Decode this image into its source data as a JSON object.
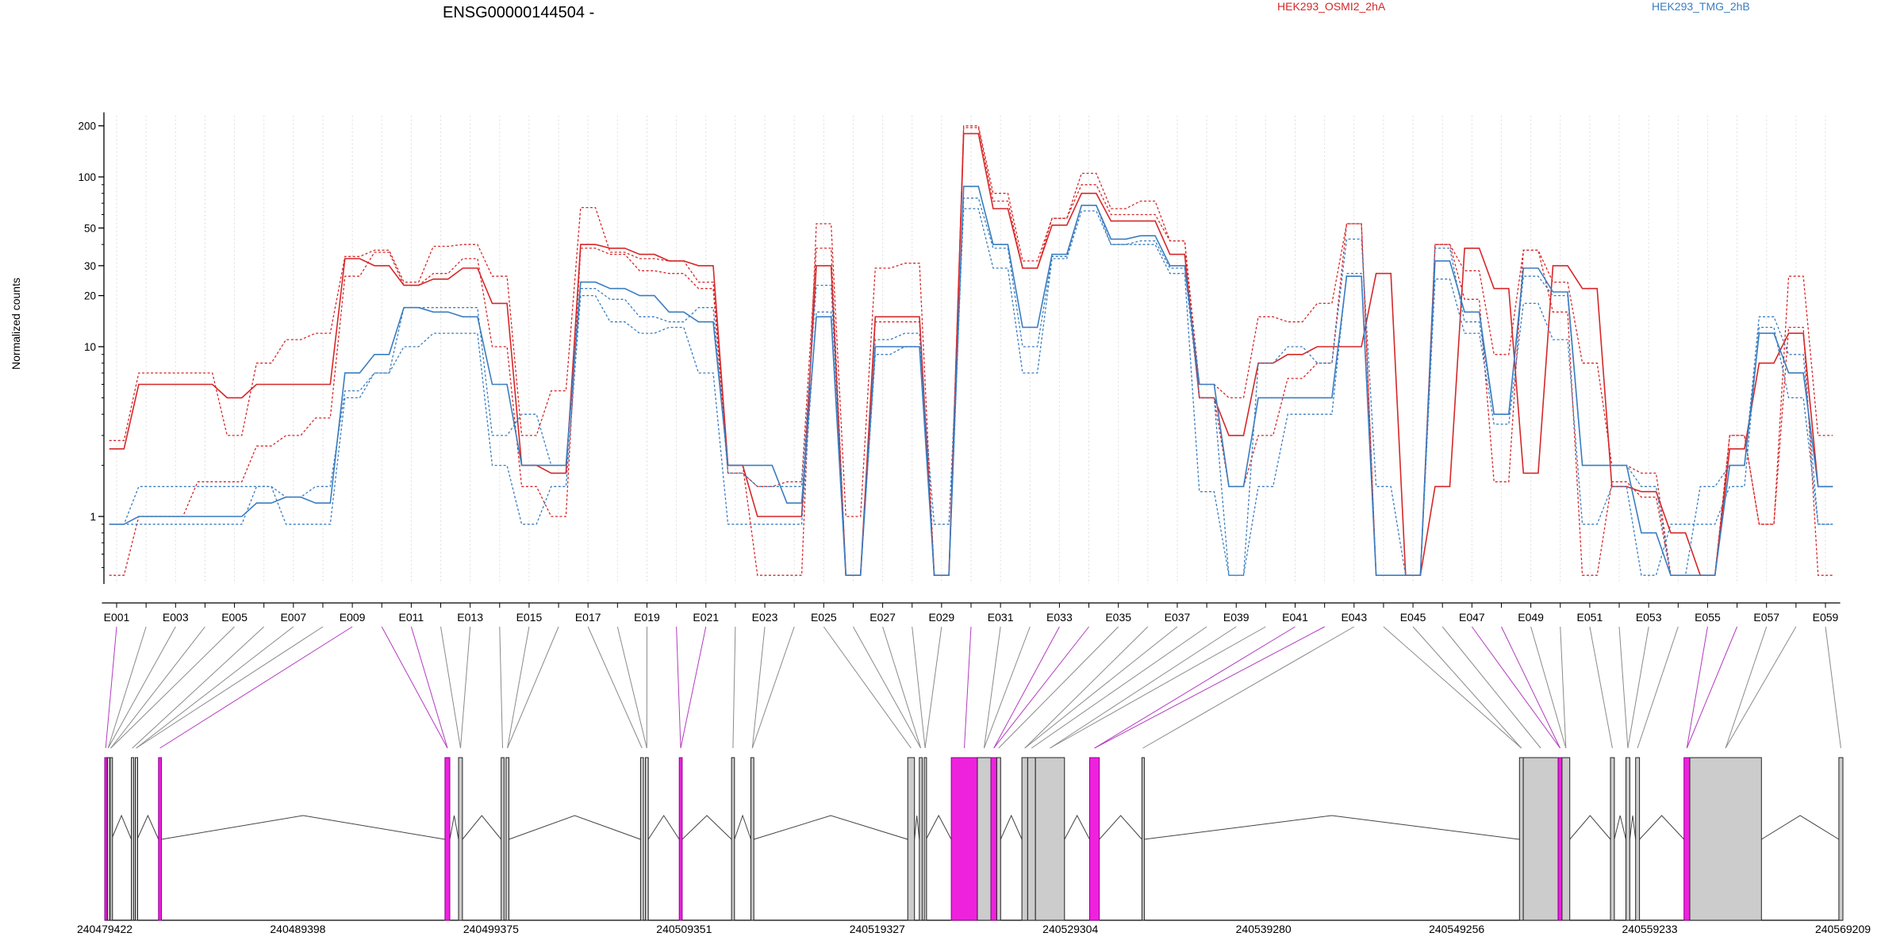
{
  "chart_data": {
    "type": "line",
    "title": "ENSG00000144504 -",
    "ylabel": "Normalized counts",
    "yscale": "log",
    "ylim": [
      0.4,
      230
    ],
    "yticks": [
      1,
      10,
      20,
      30,
      50,
      100,
      200
    ],
    "legend_position": "top",
    "grid": "vertical dotted lines at each exon",
    "colors": {
      "condition_a": "#d62728",
      "condition_b": "#3a7dc0",
      "highlight_exon": "#ee22dd",
      "nonhighlight_exon": "#cccccc"
    },
    "exons": [
      "E001",
      "E002",
      "E003",
      "E004",
      "E005",
      "E006",
      "E007",
      "E008",
      "E009",
      "E010",
      "E011",
      "E012",
      "E013",
      "E014",
      "E015",
      "E016",
      "E017",
      "E018",
      "E019",
      "E020",
      "E021",
      "E022",
      "E023",
      "E024",
      "E025",
      "E026",
      "E027",
      "E028",
      "E029",
      "E030",
      "E031",
      "E032",
      "E033",
      "E034",
      "E035",
      "E036",
      "E037",
      "E038",
      "E039",
      "E040",
      "E041",
      "E042",
      "E043",
      "E044",
      "E045",
      "E046",
      "E047",
      "E048",
      "E049",
      "E050",
      "E051",
      "E052",
      "E053",
      "E054",
      "E055",
      "E056",
      "E057",
      "E058",
      "E059"
    ],
    "exon_tick_labels": [
      "E001",
      "E003",
      "E005",
      "E007",
      "E009",
      "E011",
      "E013",
      "E015",
      "E017",
      "E019",
      "E021",
      "E023",
      "E025",
      "E027",
      "E029",
      "E031",
      "E033",
      "E035",
      "E037",
      "E039",
      "E041",
      "E043",
      "E045",
      "E047",
      "E049",
      "E051",
      "E053",
      "E055",
      "E057",
      "E059"
    ],
    "series": [
      {
        "name": "HEK293_OSMI2_2hA",
        "group": "condition_a",
        "dashed": false,
        "values": [
          2.5,
          6,
          6,
          6,
          5,
          6,
          6,
          6,
          33,
          30,
          23,
          25,
          29,
          18,
          2,
          1.8,
          40,
          38,
          35,
          32,
          30,
          2,
          1,
          1,
          30,
          0.45,
          15,
          15,
          0.45,
          180,
          65,
          29,
          52,
          80,
          55,
          55,
          35,
          5,
          3,
          8,
          9,
          10,
          10,
          27,
          0.45,
          1.5,
          38,
          22,
          1.8,
          30,
          22,
          1.5,
          1.4,
          0.8,
          0.45,
          2.5,
          8,
          12,
          1.5
        ]
      },
      {
        "name": "HEK293_OSMI2_2hA",
        "group": "condition_a",
        "dashed": true,
        "values": [
          2.8,
          7,
          7,
          7,
          3,
          8,
          11,
          12,
          34,
          37,
          24,
          39,
          40,
          26,
          3,
          5.5,
          66,
          36,
          33,
          32,
          24,
          2,
          0.45,
          0.45,
          53,
          1,
          29,
          31,
          0.45,
          200,
          80,
          32,
          57,
          105,
          65,
          72,
          42,
          6,
          5,
          15,
          14,
          18,
          53,
          0.45,
          0.45,
          40,
          28,
          9,
          37,
          24,
          8,
          2,
          1.8,
          0.45,
          0.45,
          3,
          0.9,
          26,
          3
        ]
      },
      {
        "name": "HEK293_OSMI2_2hA",
        "group": "condition_a",
        "dashed": true,
        "values": [
          0.45,
          1,
          1,
          1.6,
          1.6,
          2.6,
          3,
          3.8,
          26,
          36,
          23,
          27,
          33,
          10,
          1.5,
          1,
          38,
          35,
          28,
          27,
          22,
          1.8,
          1.5,
          1.6,
          38,
          0.45,
          14,
          14,
          0.45,
          195,
          72,
          29,
          57,
          90,
          60,
          60,
          42,
          5,
          1.5,
          3,
          6.5,
          8,
          53,
          0.45,
          0.45,
          40,
          19,
          1.6,
          37,
          16,
          0.45,
          1.6,
          1.3,
          0.45,
          0.45,
          3,
          0.9,
          13,
          0.45
        ]
      },
      {
        "name": "HEK293_TMG_2hB",
        "group": "condition_b",
        "dashed": false,
        "values": [
          0.9,
          1,
          1,
          1,
          1,
          1.2,
          1.3,
          1.2,
          7,
          9,
          17,
          16,
          15,
          6,
          2,
          2,
          24,
          22,
          20,
          16,
          14,
          2,
          2,
          1.2,
          15,
          0.45,
          10,
          10,
          0.45,
          88,
          40,
          13,
          35,
          68,
          43,
          45,
          30,
          6,
          1.5,
          5,
          5,
          5,
          26,
          0.45,
          0.45,
          32,
          16,
          4,
          29,
          21,
          2,
          2,
          0.8,
          0.45,
          0.45,
          2,
          12,
          7,
          1.5
        ]
      },
      {
        "name": "HEK293_TMG_2hB",
        "group": "condition_b",
        "dashed": true,
        "values": [
          0.9,
          1.5,
          1.5,
          1.5,
          1.5,
          1.5,
          1.3,
          1.5,
          5.5,
          7,
          17,
          17,
          17,
          3,
          4,
          2,
          22,
          19,
          15,
          14,
          17,
          1.8,
          1.5,
          1.5,
          23,
          0.45,
          11,
          12,
          0.45,
          75,
          38,
          10,
          34,
          68,
          40,
          40,
          27,
          1.4,
          0.45,
          8,
          10,
          8,
          43,
          1.5,
          0.45,
          38,
          14,
          4,
          26,
          20,
          2,
          2,
          1.5,
          0.45,
          1.5,
          2,
          15,
          9,
          0.9
        ]
      },
      {
        "name": "HEK293_TMG_2hB",
        "group": "condition_b",
        "dashed": true,
        "values": [
          0.9,
          0.9,
          0.9,
          0.9,
          0.9,
          1.5,
          0.9,
          0.9,
          5,
          7,
          10,
          12,
          12,
          2,
          0.9,
          1.5,
          20,
          14,
          12,
          13,
          7,
          0.9,
          0.9,
          0.9,
          16,
          0.45,
          9,
          10,
          0.9,
          65,
          29,
          7,
          33,
          63,
          40,
          42,
          29,
          5,
          0.45,
          1.5,
          4,
          4,
          27,
          0.45,
          0.45,
          25,
          12,
          3.5,
          18,
          11,
          0.9,
          1.5,
          0.45,
          0.9,
          0.9,
          1.5,
          13,
          5,
          0.9
        ]
      }
    ],
    "gene_model": {
      "coord_ticks": [
        "240479422",
        "240489398",
        "240499375",
        "240509351",
        "240519327",
        "240529304",
        "240539280",
        "240549256",
        "240559233",
        "240569209"
      ],
      "domain": [
        240479422,
        240569209
      ],
      "exons": [
        {
          "start": 240479422,
          "end": 240479520,
          "highlight": true
        },
        {
          "start": 240479560,
          "end": 240479640,
          "highlight": false
        },
        {
          "start": 240479700,
          "end": 240479770,
          "highlight": false
        },
        {
          "start": 240480800,
          "end": 240480900,
          "highlight": false
        },
        {
          "start": 240481000,
          "end": 240481100,
          "highlight": false
        },
        {
          "start": 240482200,
          "end": 240482350,
          "highlight": true
        },
        {
          "start": 240497000,
          "end": 240497250,
          "highlight": true
        },
        {
          "start": 240497700,
          "end": 240497900,
          "highlight": false
        },
        {
          "start": 240499900,
          "end": 240500050,
          "highlight": false
        },
        {
          "start": 240500150,
          "end": 240500300,
          "highlight": false
        },
        {
          "start": 240507100,
          "end": 240507250,
          "highlight": false
        },
        {
          "start": 240507350,
          "end": 240507500,
          "highlight": false
        },
        {
          "start": 240509100,
          "end": 240509250,
          "highlight": true
        },
        {
          "start": 240511800,
          "end": 240511950,
          "highlight": false
        },
        {
          "start": 240512800,
          "end": 240512950,
          "highlight": false
        },
        {
          "start": 240520900,
          "end": 240521250,
          "highlight": false
        },
        {
          "start": 240521500,
          "end": 240521650,
          "highlight": false
        },
        {
          "start": 240521750,
          "end": 240521850,
          "highlight": false
        },
        {
          "start": 240523150,
          "end": 240524500,
          "highlight": true
        },
        {
          "start": 240524500,
          "end": 240525200,
          "highlight": false
        },
        {
          "start": 240525200,
          "end": 240525500,
          "highlight": true
        },
        {
          "start": 240525500,
          "end": 240525700,
          "highlight": false
        },
        {
          "start": 240526800,
          "end": 240527100,
          "highlight": false
        },
        {
          "start": 240527100,
          "end": 240527500,
          "highlight": false
        },
        {
          "start": 240527500,
          "end": 240529000,
          "highlight": false
        },
        {
          "start": 240530300,
          "end": 240530800,
          "highlight": true
        },
        {
          "start": 240533000,
          "end": 240533100,
          "highlight": false
        },
        {
          "start": 240552500,
          "end": 240552700,
          "highlight": false
        },
        {
          "start": 240552700,
          "end": 240554500,
          "highlight": false
        },
        {
          "start": 240554500,
          "end": 240554700,
          "highlight": true
        },
        {
          "start": 240554700,
          "end": 240555100,
          "highlight": false
        },
        {
          "start": 240557200,
          "end": 240557400,
          "highlight": false
        },
        {
          "start": 240558000,
          "end": 240558200,
          "highlight": false
        },
        {
          "start": 240558500,
          "end": 240558700,
          "highlight": false
        },
        {
          "start": 240561000,
          "end": 240561300,
          "highlight": true
        },
        {
          "start": 240561300,
          "end": 240565000,
          "highlight": false
        },
        {
          "start": 240569000,
          "end": 240569209,
          "highlight": false
        }
      ]
    }
  }
}
